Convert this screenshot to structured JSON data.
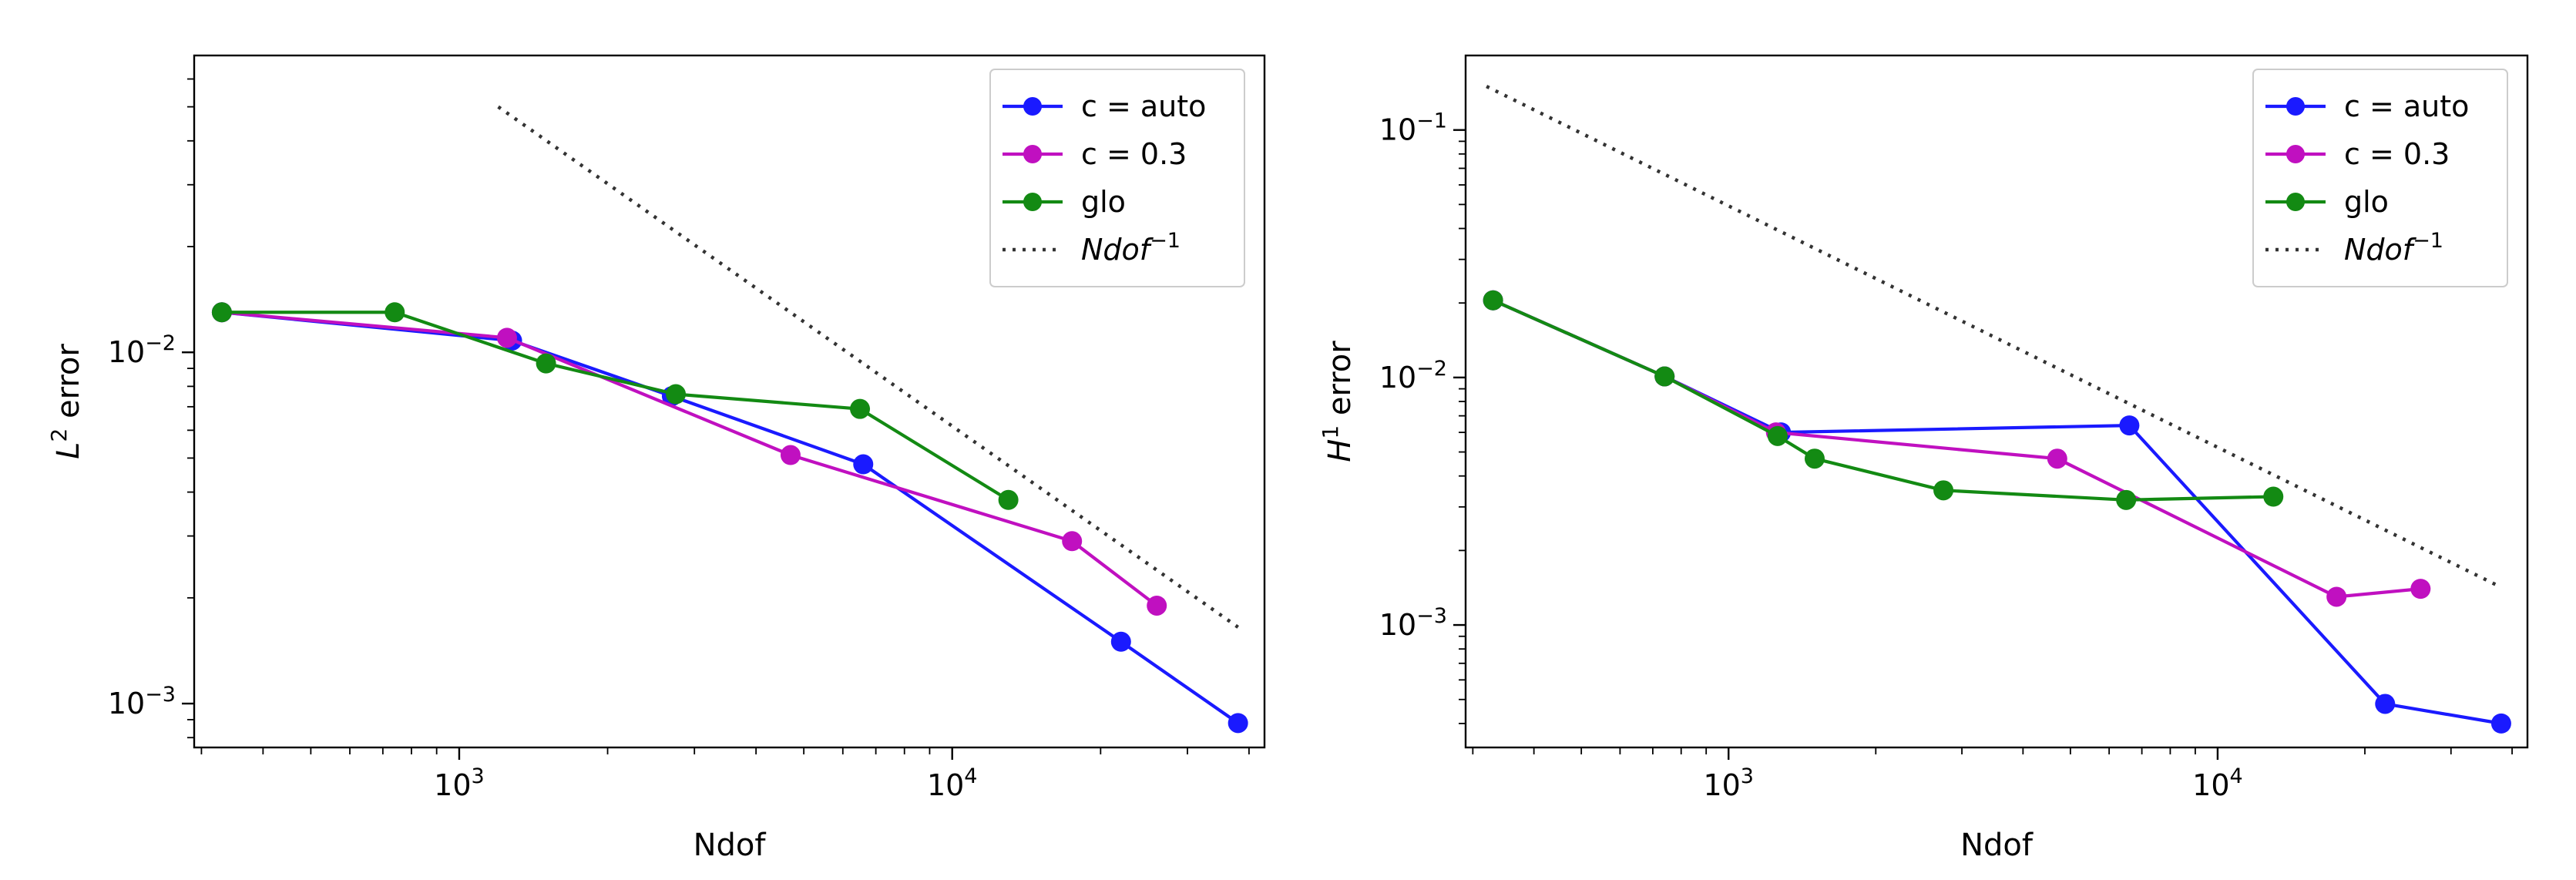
{
  "chart_data": [
    {
      "type": "line",
      "scale": "log-log",
      "title": "",
      "xlabel": "Ndof",
      "ylabel_main": "L",
      "ylabel_sup": "2",
      "ylabel_rest": " error",
      "xlim": [
        290,
        43000
      ],
      "ylim": [
        0.00075,
        0.07
      ],
      "xticks": [
        {
          "base": "10",
          "exp": "3",
          "value": 1000
        },
        {
          "base": "10",
          "exp": "4",
          "value": 10000
        }
      ],
      "yticks": [
        {
          "base": "10",
          "exp": "−3",
          "value": 0.001
        },
        {
          "base": "10",
          "exp": "−2",
          "value": 0.01
        }
      ],
      "series": [
        {
          "name": "c = auto",
          "color": "#1a1aff",
          "x": [
            330,
            1280,
            2700,
            6600,
            22000,
            38000
          ],
          "y": [
            0.013,
            0.0108,
            0.0075,
            0.0048,
            0.0015,
            0.00088
          ]
        },
        {
          "name": "c = 0.3",
          "color": "#c010c0",
          "x": [
            330,
            1250,
            4700,
            17500,
            26000
          ],
          "y": [
            0.013,
            0.011,
            0.0051,
            0.0029,
            0.0019
          ]
        },
        {
          "name": "glo",
          "color": "#138a13",
          "x": [
            330,
            740,
            1500,
            2750,
            6500,
            13000
          ],
          "y": [
            0.013,
            0.013,
            0.0093,
            0.0076,
            0.0069,
            0.0038
          ]
        }
      ],
      "reference": {
        "name_main": "Ndof",
        "name_sup": "−1",
        "style": "dotted",
        "x": [
          1200,
          38000
        ],
        "y": [
          0.05,
          0.00165
        ]
      },
      "legend": {
        "placement": "top-right",
        "order": [
          "c = auto",
          "c = 0.3",
          "glo"
        ]
      }
    },
    {
      "type": "line",
      "scale": "log-log",
      "title": "",
      "xlabel": "Ndof",
      "ylabel_main": "H",
      "ylabel_sup": "1",
      "ylabel_rest": " error",
      "xlim": [
        290,
        43000
      ],
      "ylim": [
        0.00032,
        0.2
      ],
      "xticks": [
        {
          "base": "10",
          "exp": "3",
          "value": 1000
        },
        {
          "base": "10",
          "exp": "4",
          "value": 10000
        }
      ],
      "yticks": [
        {
          "base": "10",
          "exp": "−3",
          "value": 0.001
        },
        {
          "base": "10",
          "exp": "−2",
          "value": 0.01
        },
        {
          "base": "10",
          "exp": "−1",
          "value": 0.1
        }
      ],
      "series": [
        {
          "name": "c = auto",
          "color": "#1a1aff",
          "x": [
            330,
            740,
            1280,
            6600,
            22000,
            38000
          ],
          "y": [
            0.0205,
            0.0101,
            0.006,
            0.0064,
            0.00048,
            0.0004
          ]
        },
        {
          "name": "c = 0.3",
          "color": "#c010c0",
          "x": [
            330,
            740,
            1250,
            4700,
            17500,
            26000
          ],
          "y": [
            0.0205,
            0.0101,
            0.006,
            0.0047,
            0.0013,
            0.0014
          ]
        },
        {
          "name": "glo",
          "color": "#138a13",
          "x": [
            330,
            740,
            1260,
            1500,
            2750,
            6500,
            13000
          ],
          "y": [
            0.0205,
            0.0101,
            0.0058,
            0.0047,
            0.0035,
            0.0032,
            0.0033
          ]
        }
      ],
      "reference": {
        "name_main": "Ndof",
        "name_sup": "−1",
        "style": "dotted",
        "x": [
          320,
          38000
        ],
        "y": [
          0.15,
          0.00142
        ]
      },
      "legend": {
        "placement": "top-right",
        "order": [
          "c = auto",
          "c = 0.3",
          "glo"
        ]
      }
    }
  ]
}
